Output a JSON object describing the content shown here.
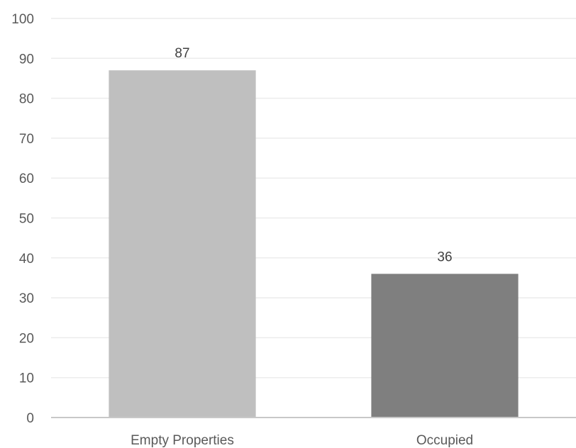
{
  "chart_data": {
    "type": "bar",
    "title": "",
    "xlabel": "",
    "ylabel": "",
    "categories": [
      "Empty Properties",
      "Occupied"
    ],
    "values": [
      87,
      36
    ],
    "data_labels": [
      "87",
      "36"
    ],
    "bar_colors": [
      "#bfbfbf",
      "#7f7f7f"
    ],
    "ylim": [
      0,
      100
    ],
    "yticks": [
      0,
      10,
      20,
      30,
      40,
      50,
      60,
      70,
      80,
      90,
      100
    ],
    "ytick_labels": [
      "0",
      "10",
      "20",
      "30",
      "40",
      "50",
      "60",
      "70",
      "80",
      "90",
      "100"
    ],
    "grid": true,
    "legend": "none"
  }
}
